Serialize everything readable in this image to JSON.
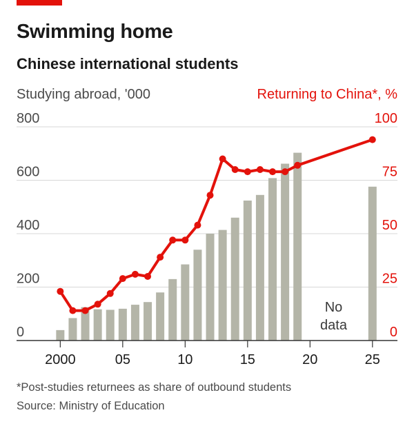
{
  "header": {
    "title": "Swimming home",
    "subtitle": "Chinese international students"
  },
  "colors": {
    "bars": "#b4b5a8",
    "line": "#e3120b",
    "grid": "#d7d7d7",
    "axis": "#333333",
    "left_tick": "#4a4a4a",
    "right_tick": "#e3120b"
  },
  "chart_data": {
    "type": "bar+line",
    "left_axis_label": "Studying abroad, '000",
    "right_axis_label": "Returning to China*, %",
    "left_ylim": [
      0,
      800
    ],
    "right_ylim": [
      0,
      100
    ],
    "left_ticks": [
      "0",
      "200",
      "400",
      "600",
      "800"
    ],
    "right_ticks": [
      "0",
      "25",
      "50",
      "75",
      "100"
    ],
    "x_ticks": [
      {
        "year": 2000,
        "label": "2000"
      },
      {
        "year": 2005,
        "label": "05"
      },
      {
        "year": 2010,
        "label": "10"
      },
      {
        "year": 2015,
        "label": "15"
      },
      {
        "year": 2020,
        "label": "20"
      },
      {
        "year": 2025,
        "label": "25"
      }
    ],
    "xlim": [
      1996.5,
      2027
    ],
    "grid": true,
    "series": [
      {
        "name": "Studying abroad, '000",
        "type": "bar",
        "axis": "left",
        "x": [
          2000,
          2001,
          2002,
          2003,
          2004,
          2005,
          2006,
          2007,
          2008,
          2009,
          2010,
          2011,
          2012,
          2013,
          2014,
          2015,
          2016,
          2017,
          2018,
          2019,
          2025
        ],
        "values": [
          39,
          84,
          125,
          117,
          115,
          119,
          134,
          144,
          180,
          230,
          285,
          340,
          400,
          414,
          460,
          524,
          545,
          608,
          662,
          703,
          576
        ]
      },
      {
        "name": "Returning to China*, %",
        "type": "line",
        "axis": "right",
        "x": [
          2000,
          2001,
          2002,
          2003,
          2004,
          2005,
          2006,
          2007,
          2008,
          2009,
          2010,
          2011,
          2012,
          2013,
          2014,
          2015,
          2016,
          2017,
          2018,
          2019,
          2025
        ],
        "values": [
          23,
          14,
          14,
          17,
          22,
          29,
          31,
          30,
          39,
          47,
          47,
          54,
          68,
          85,
          80,
          79,
          80,
          79,
          79,
          82,
          94
        ]
      }
    ],
    "annotation": [
      "No",
      "data"
    ]
  },
  "footnote": "*Post-studies returnees as share of outbound students",
  "source": "Source: Ministry of Education"
}
